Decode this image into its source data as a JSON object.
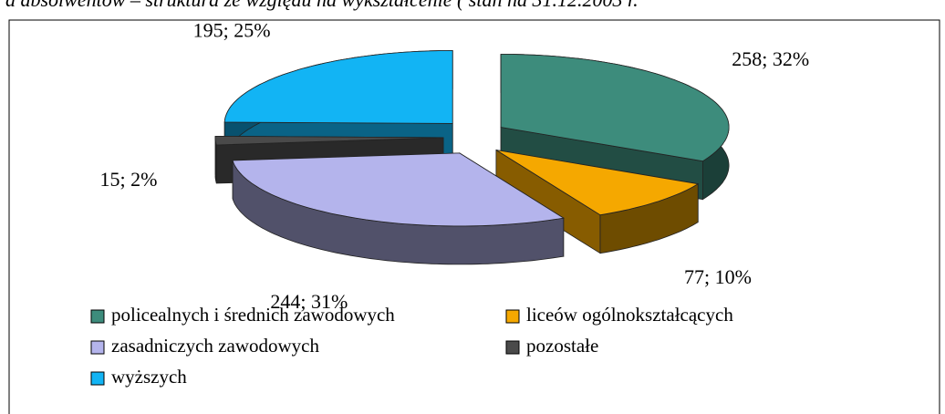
{
  "chart_data": {
    "type": "pie",
    "title": "a absolwentów – struktura ze względu na wykształcenie ( stan na 31.12.2003 r.",
    "categories": [
      "policealnych i średnich zawodowych",
      "liceów ogólnokształcących",
      "zasadniczych zawodowych",
      "pozostałe",
      "wyższych"
    ],
    "values": [
      258,
      77,
      244,
      15,
      195
    ],
    "value_labels": [
      "258; 32%",
      "77; 10%",
      "244; 31%",
      "15; 2%",
      "195; 25%"
    ],
    "colors": [
      "#3d8c7c",
      "#f5a800",
      "#b4b4ec",
      "#4a4a4a",
      "#12b4f4"
    ],
    "legend": "bottom"
  }
}
